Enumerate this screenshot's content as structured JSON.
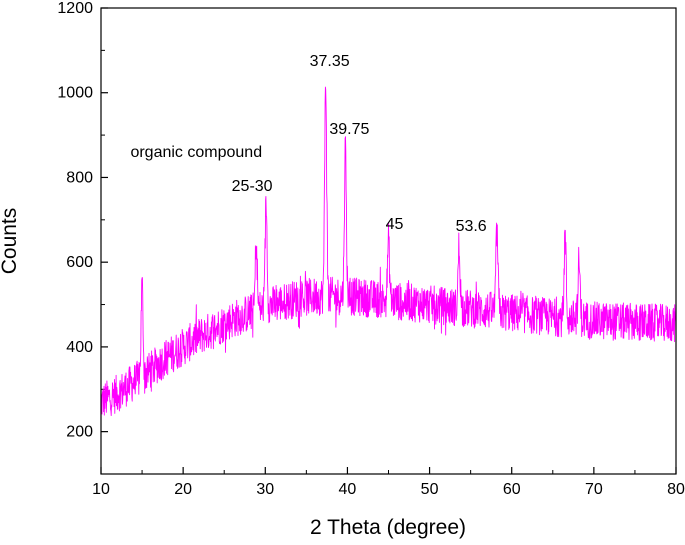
{
  "chart_data": {
    "type": "line",
    "title": "",
    "xlabel": "2 Theta (degree)",
    "ylabel": "Counts",
    "xlim": [
      10,
      80
    ],
    "ylim": [
      100,
      1200
    ],
    "x_ticks": [
      "10",
      "20",
      "30",
      "40",
      "50",
      "60",
      "70",
      "80"
    ],
    "y_ticks": [
      "200",
      "400",
      "600",
      "800",
      "1000",
      "1200"
    ],
    "grid": false,
    "legend": "none",
    "series_color": "#ff00ff",
    "baseline_points": [
      [
        10,
        270
      ],
      [
        12,
        290
      ],
      [
        15,
        330
      ],
      [
        18,
        375
      ],
      [
        22,
        425
      ],
      [
        26,
        465
      ],
      [
        30,
        495
      ],
      [
        34,
        515
      ],
      [
        37,
        520
      ],
      [
        40,
        520
      ],
      [
        45,
        510
      ],
      [
        50,
        500
      ],
      [
        55,
        490
      ],
      [
        60,
        480
      ],
      [
        65,
        470
      ],
      [
        70,
        462
      ],
      [
        75,
        458
      ],
      [
        80,
        455
      ]
    ],
    "peaks": [
      {
        "x": 15.0,
        "y": 545
      },
      {
        "x": 28.9,
        "y": 650
      },
      {
        "x": 30.1,
        "y": 740
      },
      {
        "x": 37.35,
        "y": 1035
      },
      {
        "x": 39.75,
        "y": 870
      },
      {
        "x": 45.0,
        "y": 650
      },
      {
        "x": 53.6,
        "y": 640
      },
      {
        "x": 58.2,
        "y": 675
      },
      {
        "x": 66.5,
        "y": 665
      },
      {
        "x": 68.2,
        "y": 600
      }
    ],
    "annotations": [
      {
        "text": "37.35",
        "x": 37.35,
        "y": 1035
      },
      {
        "text": "39.75",
        "x": 39.75,
        "y": 870
      },
      {
        "text": "organic compound",
        "x": 30.1,
        "y": 740
      },
      {
        "text": "25-30",
        "x": 30.1,
        "y": 740
      },
      {
        "text": "45",
        "x": 45.0,
        "y": 650
      },
      {
        "text": "53.6",
        "x": 53.6,
        "y": 640
      }
    ]
  }
}
